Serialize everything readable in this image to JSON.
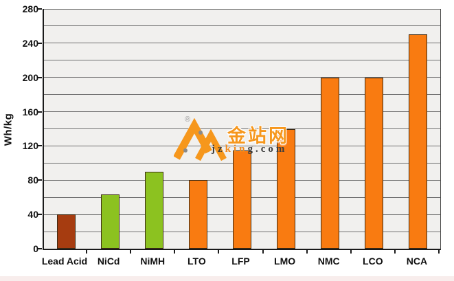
{
  "chart_data": {
    "type": "bar",
    "categories": [
      "Lead Acid",
      "NiCd",
      "NiMH",
      "LTO",
      "LFP",
      "LMO",
      "NMC",
      "LCO",
      "NCA"
    ],
    "values": [
      40,
      63,
      90,
      80,
      115,
      140,
      200,
      200,
      250
    ],
    "bar_colors": [
      "#a63c10",
      "#8cc220",
      "#8cc220",
      "#f97b11",
      "#f97b11",
      "#f97b11",
      "#f97b11",
      "#f97b11",
      "#f97b11"
    ],
    "ylabel": "Wh/kg",
    "xlabel": "",
    "ylim": [
      0,
      280
    ],
    "grid_step": 20,
    "labeled_ticks": [
      0,
      40,
      80,
      120,
      160,
      200,
      240,
      280
    ],
    "grid": true,
    "legend": "none"
  },
  "watermark": {
    "registered_symbol": "®",
    "brand": "金站网",
    "site_parts": {
      "prefix": "jz",
      "mid": "kin",
      "suffix": "g.com"
    },
    "logo_color": "#f6971c",
    "dot_color": "#8a8a8a"
  },
  "colors": {
    "plot_background": "#f1f0ee",
    "gridline": "#6e6e6e",
    "axis": "#1a1a1a",
    "bar_orange": "#f97b11",
    "bar_green": "#8cc220",
    "bar_brown": "#a63c10",
    "watermark_orange": "#f6971c"
  }
}
